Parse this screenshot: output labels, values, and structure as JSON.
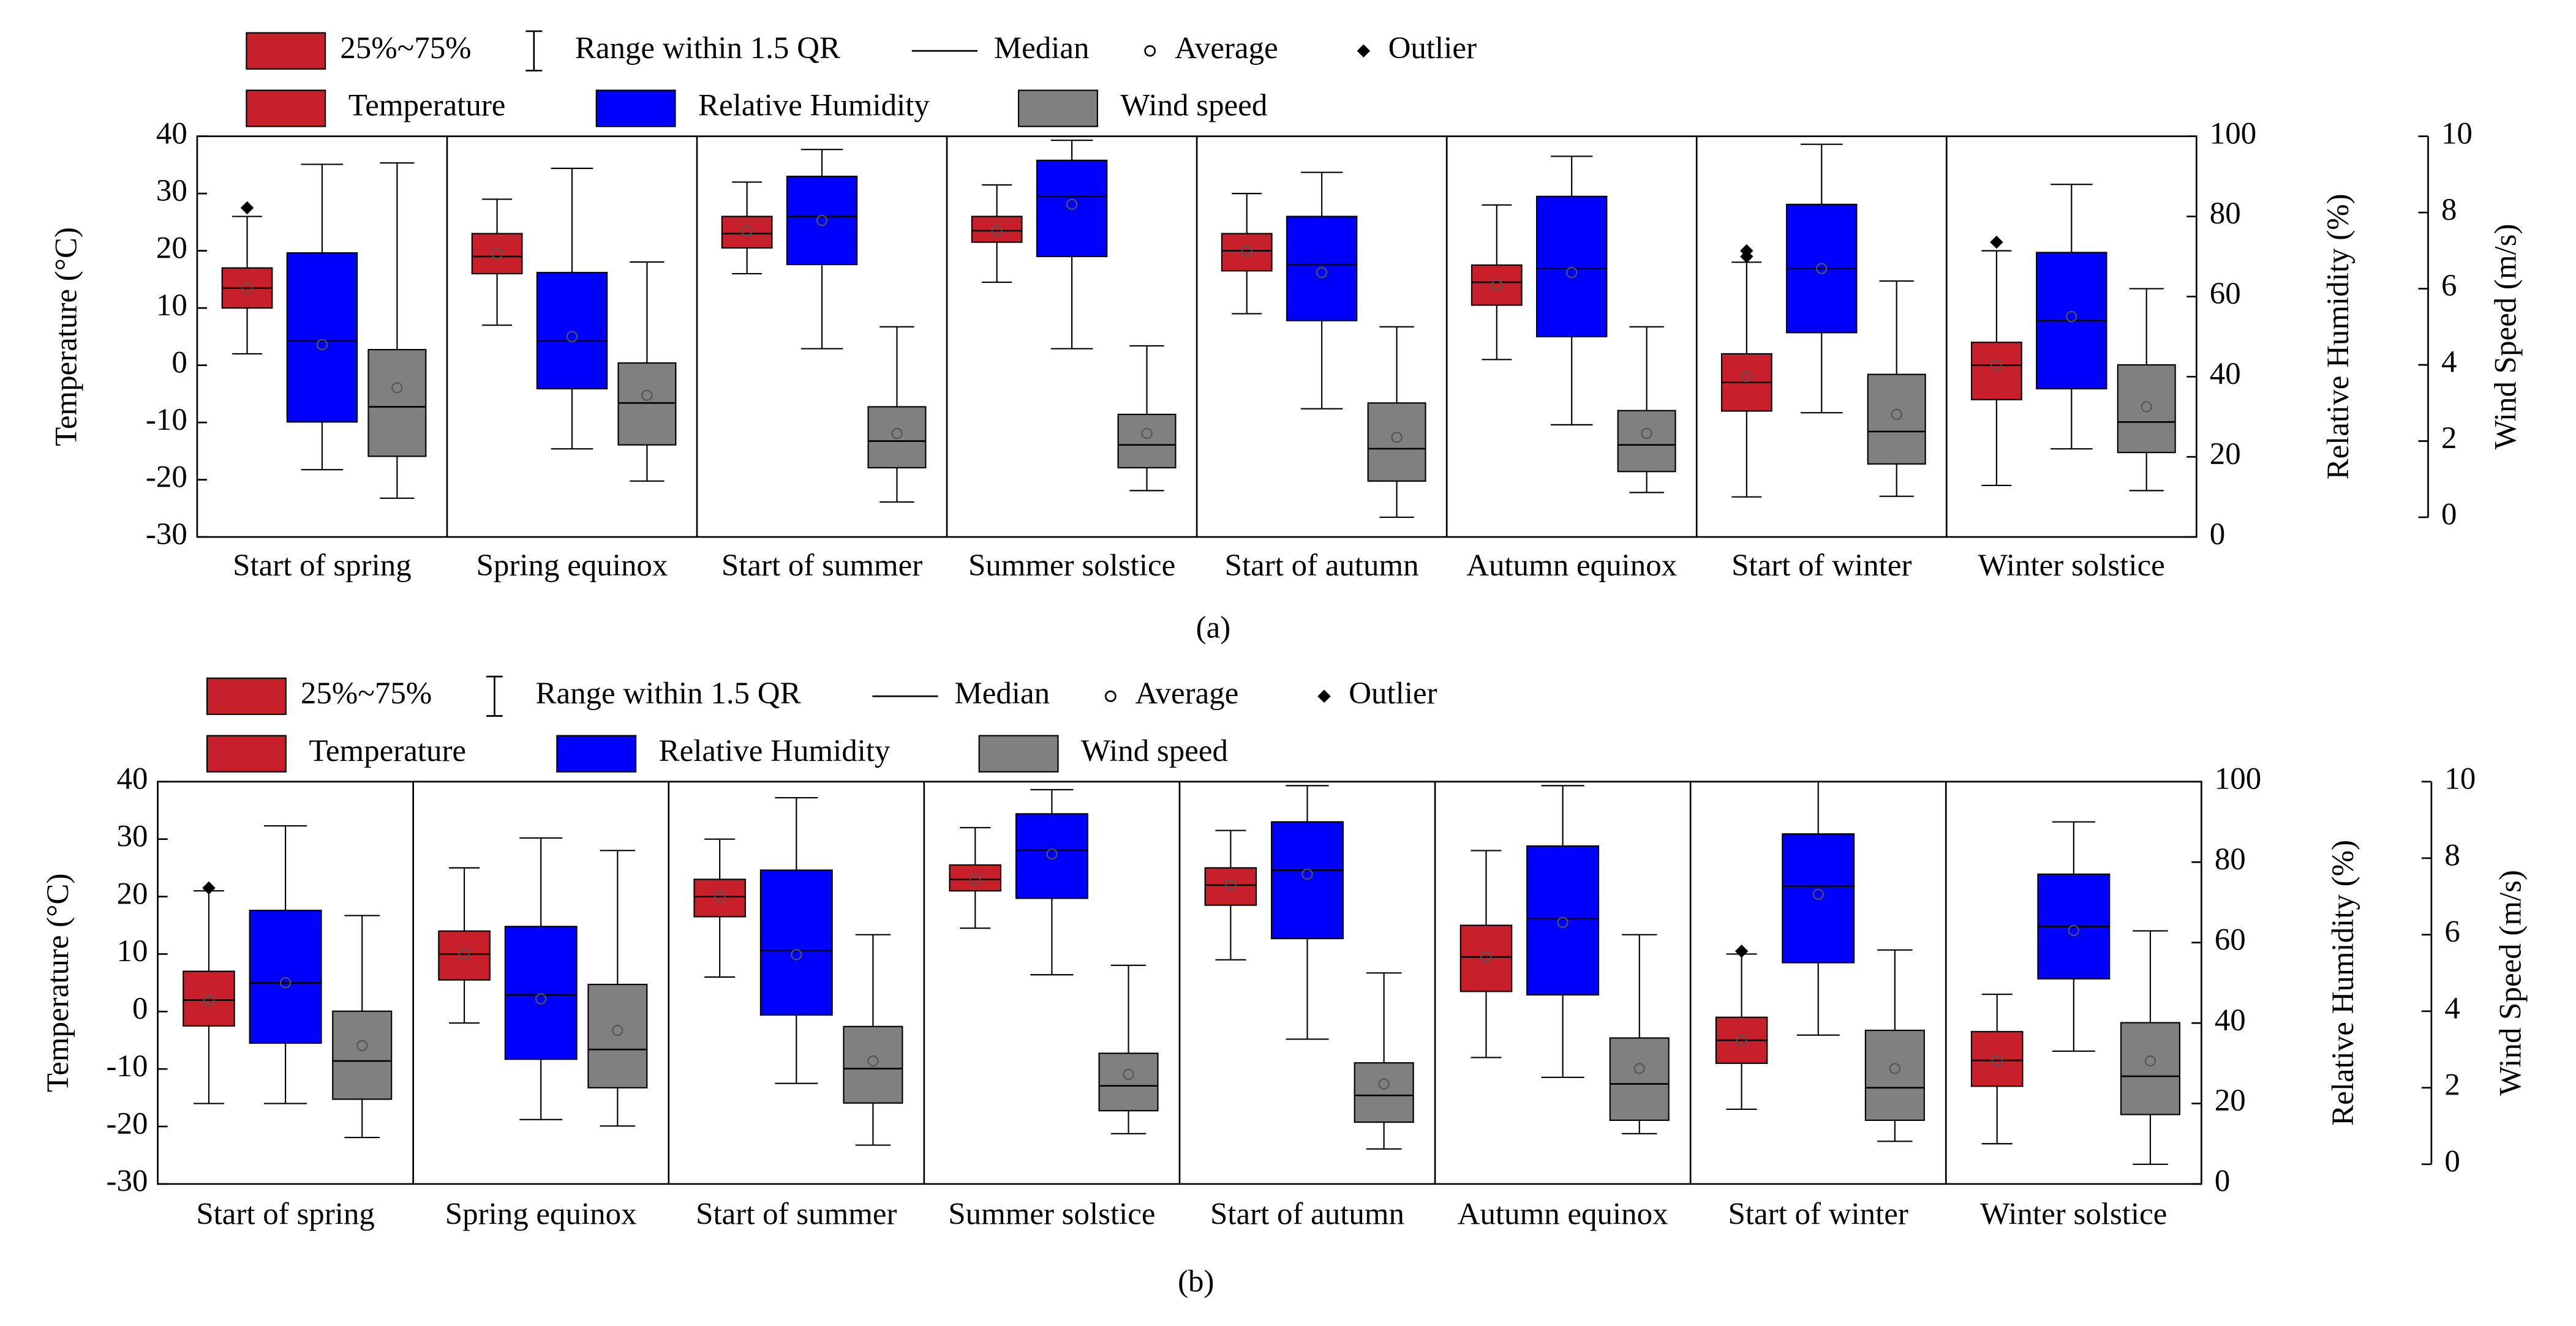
{
  "charts": [
    {
      "chart_data": {
        "type": "box",
        "label": "(a)",
        "legend_keys": [
          "25%~75%",
          "Range within 1.5 QR",
          "Median",
          "Average",
          "Outlier"
        ],
        "categories": [
          "Start of spring",
          "Spring equinox",
          "Start of summer",
          "Summer solstice",
          "Start of autumn",
          "Autumn equinox",
          "Start of winter",
          "Winter solstice"
        ],
        "ylabel": "Temperature (°C)",
        "y2label": "Relative Humidity (%)",
        "y3label": "Wind Speed (m/s)",
        "ylim": [
          -30,
          40
        ],
        "yticks": [
          -30,
          -20,
          -10,
          0,
          10,
          20,
          30,
          40
        ],
        "y2lim": [
          0,
          100
        ],
        "y2ticks": [
          0,
          20,
          40,
          60,
          80,
          100
        ],
        "y3lim": [
          0,
          10
        ],
        "y3ticks": [
          0,
          2,
          4,
          6,
          8,
          10
        ],
        "series": [
          {
            "name": "Temperature",
            "color": "#c8202a",
            "axis": "y",
            "low": [
              2,
              7,
              16,
              14.5,
              9,
              1,
              -23,
              -21
            ],
            "q1": [
              10,
              16,
              20.5,
              21.5,
              16.5,
              10.5,
              -8,
              -6
            ],
            "median": [
              13.5,
              19,
              23,
              23.5,
              20,
              14.5,
              -3,
              0
            ],
            "q3": [
              17,
              23,
              26,
              26,
              23,
              17.5,
              2,
              4
            ],
            "high": [
              26,
              29,
              32,
              31.5,
              30,
              28,
              18,
              20
            ],
            "mean": [
              13.5,
              19.5,
              23.5,
              23.5,
              20,
              14,
              -2,
              0
            ],
            "outliers": [
              [
                27.5
              ],
              [],
              [],
              [],
              [],
              [],
              [
                19,
                20
              ],
              [
                21.5
              ]
            ]
          },
          {
            "name": "Relative Humidity",
            "color": "#0000ff",
            "axis": "y2",
            "low": [
              16.8,
              22,
              47,
              47,
              32,
              28,
              31,
              22
            ],
            "q1": [
              28.7,
              37,
              68,
              70,
              54,
              50,
              51,
              37
            ],
            "median": [
              49,
              49,
              80,
              85,
              68,
              67,
              67,
              54
            ],
            "q3": [
              70.9,
              66,
              90,
              94,
              80,
              85,
              83,
              71
            ],
            "high": [
              93,
              92,
              96.7,
              99,
              91,
              95,
              98,
              88
            ],
            "mean": [
              48,
              50,
              79,
              83,
              66,
              66,
              67,
              55
            ]
          },
          {
            "name": "Wind speed",
            "color": "#808080",
            "axis": "y3",
            "low": [
              0.5,
              0.95,
              0.4,
              0.7,
              0,
              0.65,
              0.55,
              0.7
            ],
            "q1": [
              1.6,
              1.9,
              1.3,
              1.3,
              0.95,
              1.2,
              1.4,
              1.7
            ],
            "median": [
              2.9,
              3.0,
              2.0,
              1.9,
              1.8,
              1.9,
              2.25,
              2.5
            ],
            "q3": [
              4.4,
              4.05,
              2.9,
              2.7,
              3.0,
              2.8,
              3.75,
              4.0
            ],
            "high": [
              9.3,
              6.7,
              5.0,
              4.5,
              5.0,
              5.0,
              6.2,
              6.0
            ],
            "mean": [
              3.4,
              3.2,
              2.2,
              2.2,
              2.1,
              2.2,
              2.7,
              2.9
            ]
          }
        ]
      }
    },
    {
      "chart_data": {
        "type": "box",
        "label": "(b)",
        "legend_keys": [
          "25%~75%",
          "Range within 1.5 QR",
          "Median",
          "Average",
          "Outlier"
        ],
        "categories": [
          "Start of spring",
          "Spring equinox",
          "Start of summer",
          "Summer solstice",
          "Start of autumn",
          "Autumn equinox",
          "Start of winter",
          "Winter solstice"
        ],
        "ylabel": "Temperature (°C)",
        "y2label": "Relative Humidity (%)",
        "y3label": "Wind Speed (m/s)",
        "ylim": [
          -30,
          40
        ],
        "yticks": [
          -30,
          -20,
          -10,
          0,
          10,
          20,
          30,
          40
        ],
        "y2lim": [
          0,
          100
        ],
        "y2ticks": [
          0,
          20,
          40,
          60,
          80,
          100
        ],
        "y3lim": [
          0,
          10
        ],
        "y3ticks": [
          0,
          2,
          4,
          6,
          8,
          10
        ],
        "series": [
          {
            "name": "Temperature",
            "color": "#c8202a",
            "axis": "y",
            "low": [
              -16,
              -2,
              6,
              14.5,
              9,
              -8,
              -17,
              -23
            ],
            "q1": [
              -2.5,
              5.5,
              16.5,
              21,
              18.5,
              3.5,
              -9,
              -13
            ],
            "median": [
              2,
              10,
              20,
              23,
              22,
              9.5,
              -5,
              -8.5
            ],
            "q3": [
              7,
              14,
              23,
              25.5,
              25,
              15,
              -1,
              -3.5
            ],
            "high": [
              21,
              25,
              30,
              32,
              31.5,
              28,
              10,
              3
            ],
            "mean": [
              2,
              10,
              20,
              23,
              22,
              9.5,
              -5,
              -8.5
            ],
            "outliers": [
              [
                21.5
              ],
              [],
              [],
              [],
              [],
              [],
              [
                10.5
              ],
              []
            ]
          },
          {
            "name": "Relative Humidity",
            "color": "#0000ff",
            "axis": "y2",
            "low": [
              20,
              16,
              25,
              52,
              36,
              26.5,
              37,
              33
            ],
            "q1": [
              35,
              31,
              42,
              71,
              61,
              47,
              55,
              51
            ],
            "median": [
              50,
              47,
              58,
              83,
              78,
              66,
              74,
              64
            ],
            "q3": [
              68,
              64,
              78,
              92,
              90,
              84,
              87,
              77
            ],
            "high": [
              89,
              86,
              96,
              98,
              99,
              99,
              100,
              90
            ],
            "mean": [
              50,
              46,
              57,
              82,
              77,
              65,
              72,
              63
            ]
          },
          {
            "name": "Wind speed",
            "color": "#808080",
            "axis": "y3",
            "low": [
              0.7,
              1.0,
              0.5,
              0.8,
              0.4,
              0.8,
              0.6,
              0
            ],
            "q1": [
              1.7,
              2.0,
              1.6,
              1.4,
              1.1,
              1.15,
              1.15,
              1.3
            ],
            "median": [
              2.7,
              3.0,
              2.5,
              2.05,
              1.8,
              2.1,
              2.0,
              2.3
            ],
            "q3": [
              4.0,
              4.7,
              3.6,
              2.9,
              2.65,
              3.3,
              3.5,
              3.7
            ],
            "high": [
              6.5,
              8.2,
              6.0,
              5.2,
              5.0,
              6.0,
              5.6,
              6.1
            ],
            "mean": [
              3.1,
              3.5,
              2.7,
              2.35,
              2.1,
              2.5,
              2.5,
              2.7
            ]
          }
        ]
      }
    }
  ]
}
